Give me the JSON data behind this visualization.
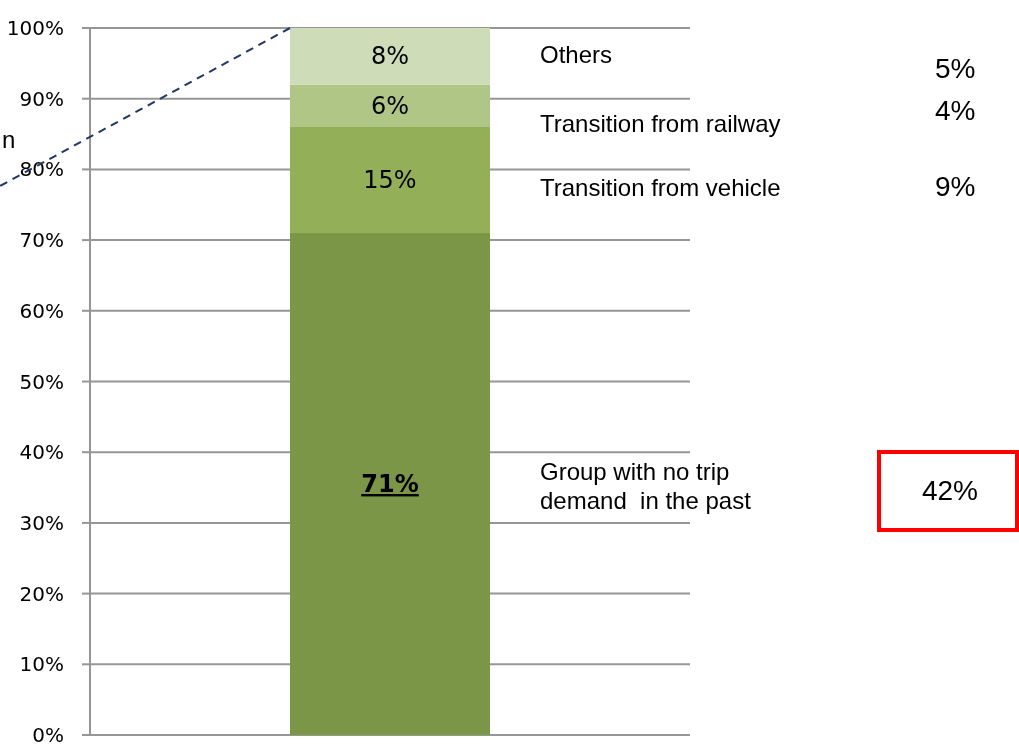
{
  "chart_data": {
    "type": "bar",
    "stacked": true,
    "categories": [
      null
    ],
    "series": [
      {
        "color": "#7b9646",
        "values": [
          71
        ],
        "value_labels": [
          "71%"
        ]
      },
      {
        "color": "#93b058",
        "values": [
          15
        ],
        "value_labels": [
          "15%"
        ]
      },
      {
        "color": "#afc687",
        "values": [
          6
        ],
        "value_labels": [
          "6%"
        ]
      },
      {
        "color": "#cfdcb8",
        "values": [
          8
        ],
        "value_labels": [
          "8%"
        ]
      }
    ],
    "ylim": [
      0,
      100
    ],
    "yticks": [
      {
        "value": 0,
        "label": "0%"
      },
      {
        "value": 10,
        "label": "10%"
      },
      {
        "value": 20,
        "label": "20%"
      },
      {
        "value": 30,
        "label": "30%"
      },
      {
        "value": 40,
        "label": "40%"
      },
      {
        "value": 50,
        "label": "50%"
      },
      {
        "value": 60,
        "label": "60%"
      },
      {
        "value": 70,
        "label": "70%"
      },
      {
        "value": 80,
        "label": "80%"
      },
      {
        "value": 90,
        "label": "90%"
      },
      {
        "value": 100,
        "label": "100%"
      }
    ],
    "grid": "y",
    "annotations": [
      "Others",
      "5%",
      "Transition from railway",
      "4%",
      "Transition from vehicle",
      "9%",
      "Group with no trip\ndemand  in the past",
      "42%",
      "n"
    ]
  }
}
